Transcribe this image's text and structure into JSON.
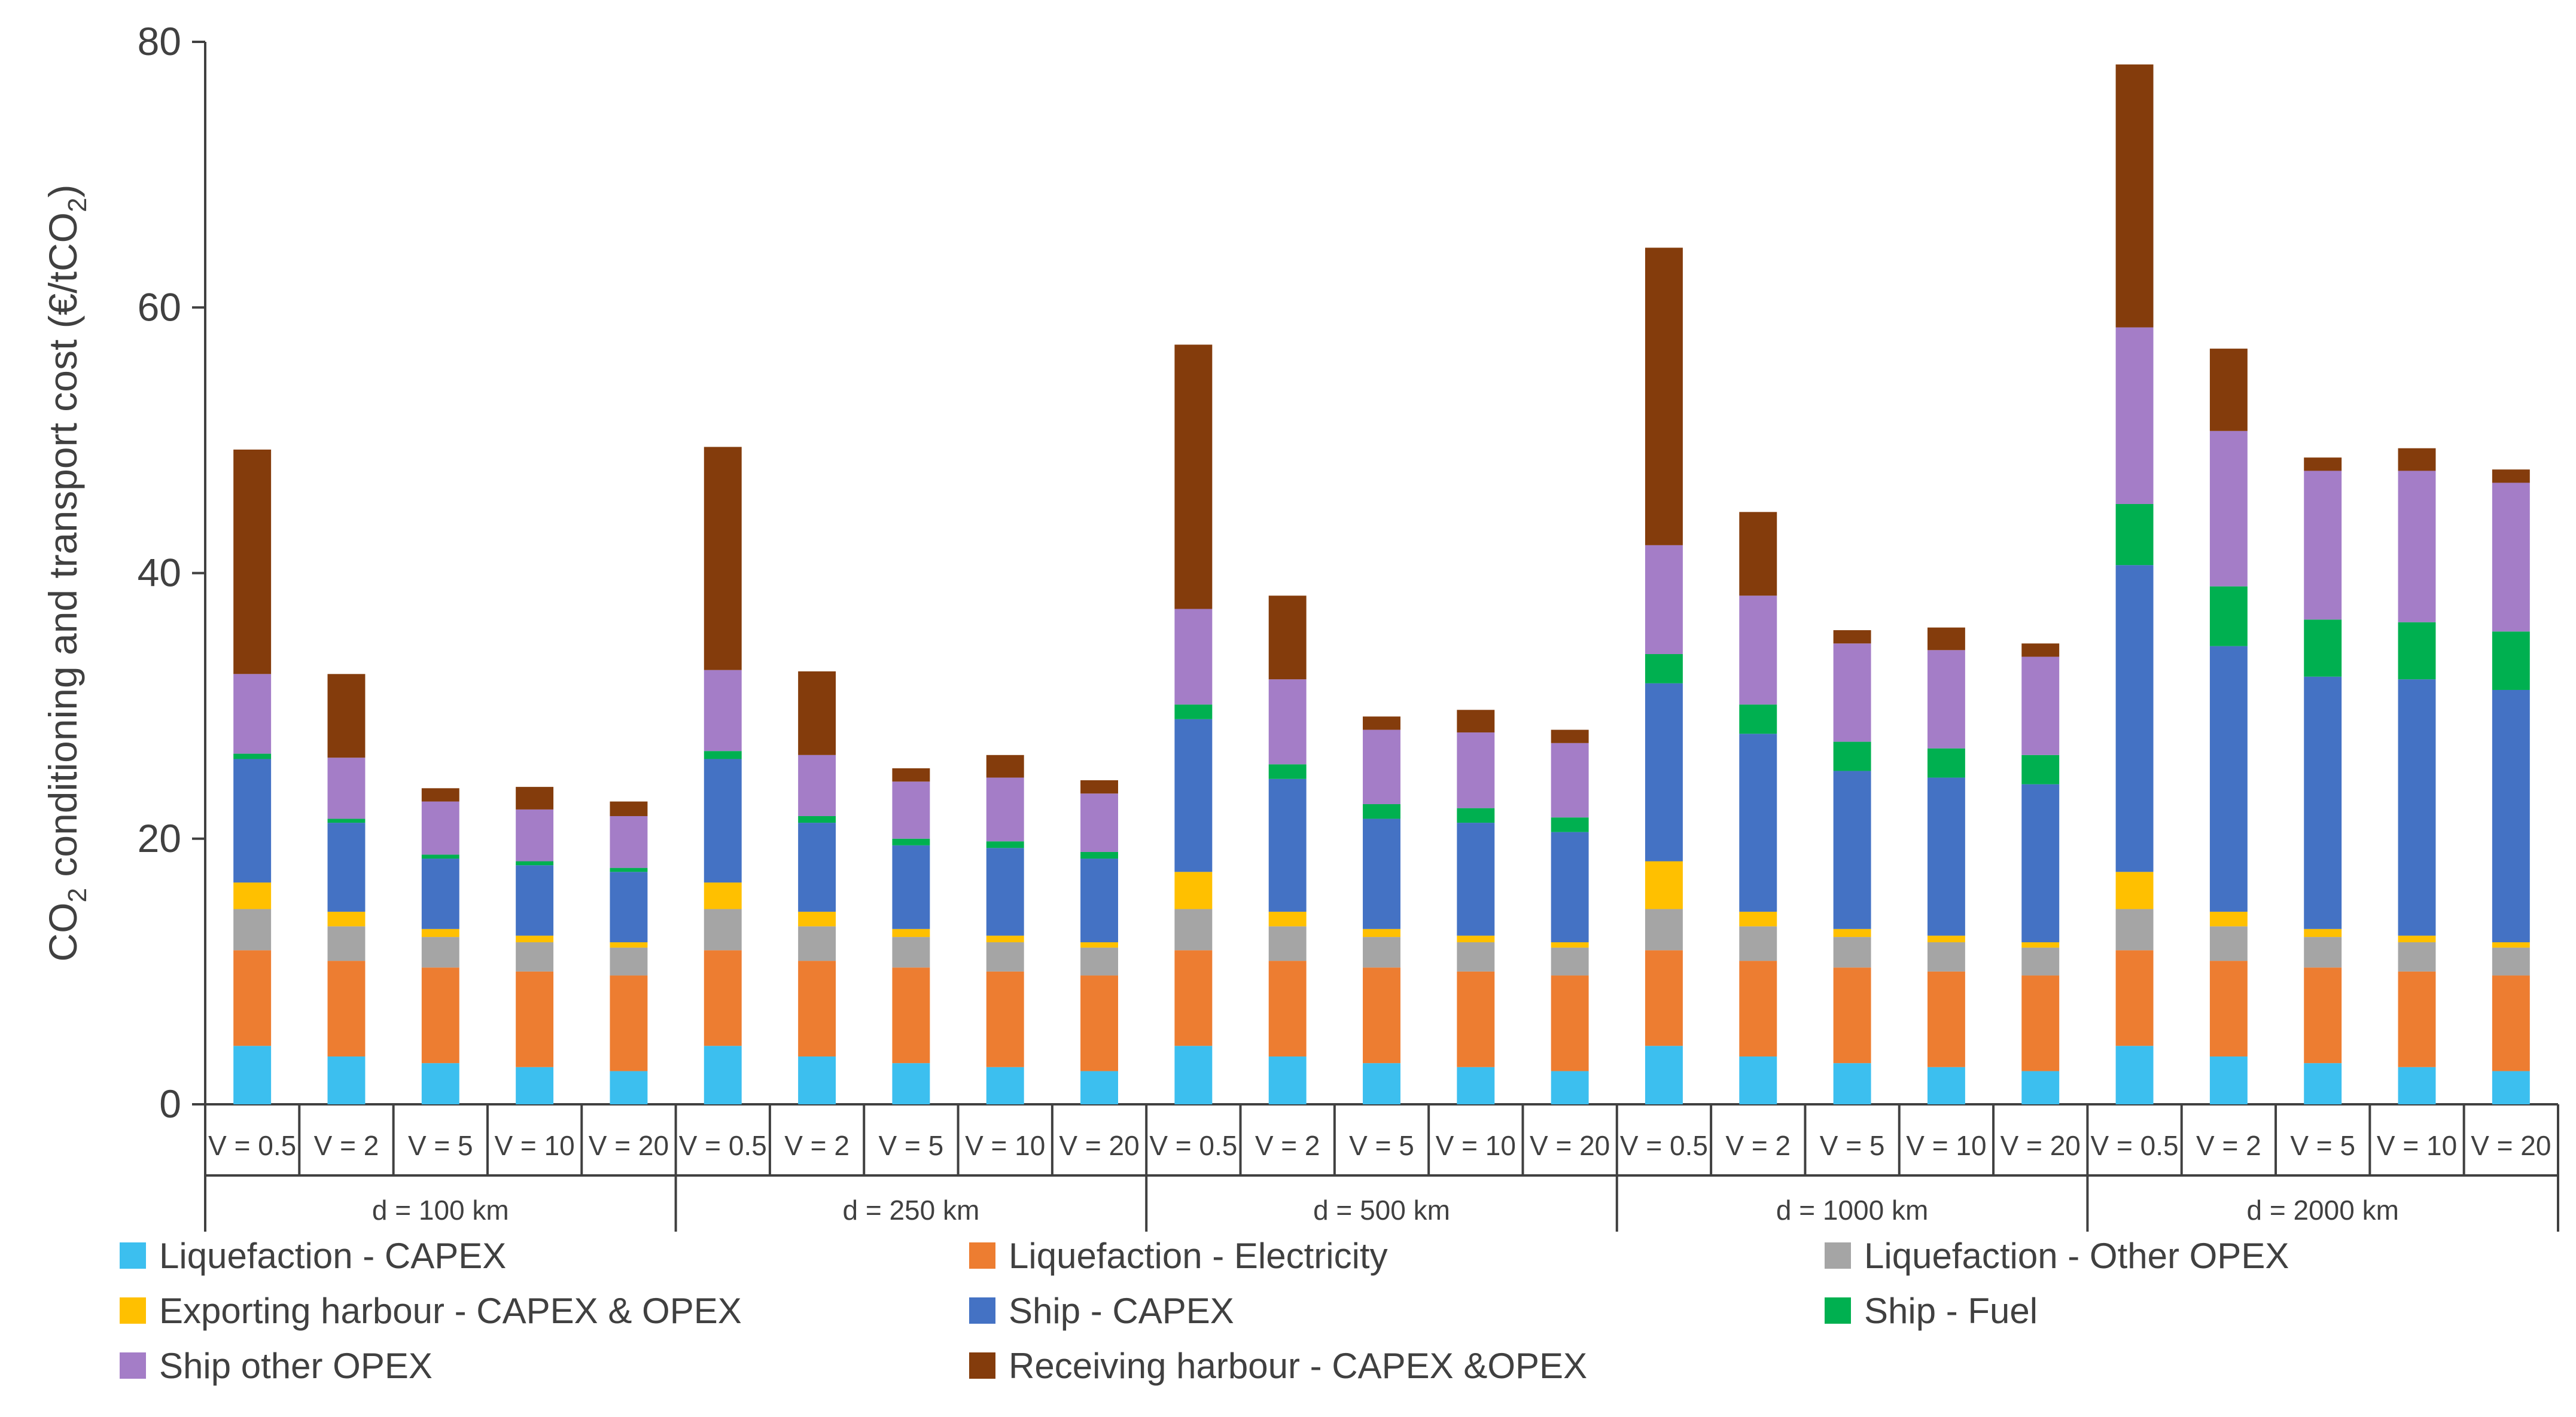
{
  "chart_data": {
    "type": "bar",
    "stacked": true,
    "ylabel_parts": [
      "CO",
      "2",
      " conditioning and transport cost (€/tCO",
      "2",
      ")"
    ],
    "ylim": [
      0,
      80
    ],
    "yticks": [
      0,
      20,
      40,
      60,
      80
    ],
    "grid": false,
    "legend_position": "bottom",
    "groups": [
      "d = 100 km",
      "d = 250 km",
      "d = 500 km",
      "d = 1000 km",
      "d = 2000 km"
    ],
    "categories": [
      "V = 0.5",
      "V = 2",
      "V = 5",
      "V = 10",
      "V = 20"
    ],
    "series": [
      {
        "name": "Liquefaction - CAPEX",
        "color": "#3CBFEF",
        "values": [
          [
            4.4,
            3.6,
            3.1,
            2.8,
            2.5
          ],
          [
            4.4,
            3.6,
            3.1,
            2.8,
            2.5
          ],
          [
            4.4,
            3.6,
            3.1,
            2.8,
            2.5
          ],
          [
            4.4,
            3.6,
            3.1,
            2.8,
            2.5
          ],
          [
            4.4,
            3.6,
            3.1,
            2.8,
            2.5
          ]
        ]
      },
      {
        "name": "Liquefaction - Electricity",
        "color": "#ED7D31",
        "values": [
          [
            7.2,
            7.2,
            7.2,
            7.2,
            7.2
          ],
          [
            7.2,
            7.2,
            7.2,
            7.2,
            7.2
          ],
          [
            7.2,
            7.2,
            7.2,
            7.2,
            7.2
          ],
          [
            7.2,
            7.2,
            7.2,
            7.2,
            7.2
          ],
          [
            7.2,
            7.2,
            7.2,
            7.2,
            7.2
          ]
        ]
      },
      {
        "name": "Liquefaction - Other OPEX",
        "color": "#A5A5A5",
        "values": [
          [
            3.1,
            2.6,
            2.3,
            2.2,
            2.1
          ],
          [
            3.1,
            2.6,
            2.3,
            2.2,
            2.1
          ],
          [
            3.1,
            2.6,
            2.3,
            2.2,
            2.1
          ],
          [
            3.1,
            2.6,
            2.3,
            2.2,
            2.1
          ],
          [
            3.1,
            2.6,
            2.3,
            2.2,
            2.1
          ]
        ]
      },
      {
        "name": "Exporting harbour - CAPEX & OPEX",
        "color": "#FFC000",
        "values": [
          [
            2.0,
            1.1,
            0.6,
            0.5,
            0.4
          ],
          [
            2.0,
            1.1,
            0.6,
            0.5,
            0.4
          ],
          [
            2.8,
            1.1,
            0.6,
            0.5,
            0.4
          ],
          [
            3.6,
            1.1,
            0.6,
            0.5,
            0.4
          ],
          [
            2.8,
            1.1,
            0.6,
            0.5,
            0.4
          ]
        ]
      },
      {
        "name": "Ship - CAPEX",
        "color": "#4472C4",
        "values": [
          [
            9.3,
            6.7,
            5.3,
            5.3,
            5.3
          ],
          [
            9.3,
            6.7,
            6.3,
            6.6,
            6.3
          ],
          [
            11.5,
            10.0,
            8.3,
            8.5,
            8.3
          ],
          [
            13.4,
            13.4,
            11.9,
            11.9,
            11.9
          ],
          [
            23.1,
            20.0,
            19.0,
            19.3,
            19.0
          ]
        ]
      },
      {
        "name": "Ship - Fuel",
        "color": "#00B050",
        "values": [
          [
            0.4,
            0.3,
            0.3,
            0.3,
            0.3
          ],
          [
            0.6,
            0.5,
            0.5,
            0.5,
            0.5
          ],
          [
            1.1,
            1.1,
            1.1,
            1.1,
            1.1
          ],
          [
            2.2,
            2.2,
            2.2,
            2.2,
            2.2
          ],
          [
            4.6,
            4.5,
            4.3,
            4.3,
            4.4
          ]
        ]
      },
      {
        "name": "Ship other OPEX",
        "color": "#A47DC7",
        "values": [
          [
            6.0,
            4.6,
            4.0,
            3.9,
            3.9
          ],
          [
            6.1,
            4.6,
            4.3,
            4.8,
            4.4
          ],
          [
            7.2,
            6.4,
            5.6,
            5.7,
            5.6
          ],
          [
            8.2,
            8.2,
            7.4,
            7.4,
            7.4
          ],
          [
            13.3,
            11.7,
            11.2,
            11.4,
            11.2
          ]
        ]
      },
      {
        "name": "Receiving harbour - CAPEX &OPEX",
        "color": "#843C0C",
        "values": [
          [
            16.9,
            6.3,
            1.0,
            1.7,
            1.1
          ],
          [
            16.8,
            6.3,
            1.0,
            1.7,
            1.0
          ],
          [
            19.9,
            6.3,
            1.0,
            1.7,
            1.0
          ],
          [
            22.4,
            6.3,
            1.0,
            1.7,
            1.0
          ],
          [
            19.8,
            6.2,
            1.0,
            1.7,
            1.0
          ]
        ]
      }
    ]
  }
}
